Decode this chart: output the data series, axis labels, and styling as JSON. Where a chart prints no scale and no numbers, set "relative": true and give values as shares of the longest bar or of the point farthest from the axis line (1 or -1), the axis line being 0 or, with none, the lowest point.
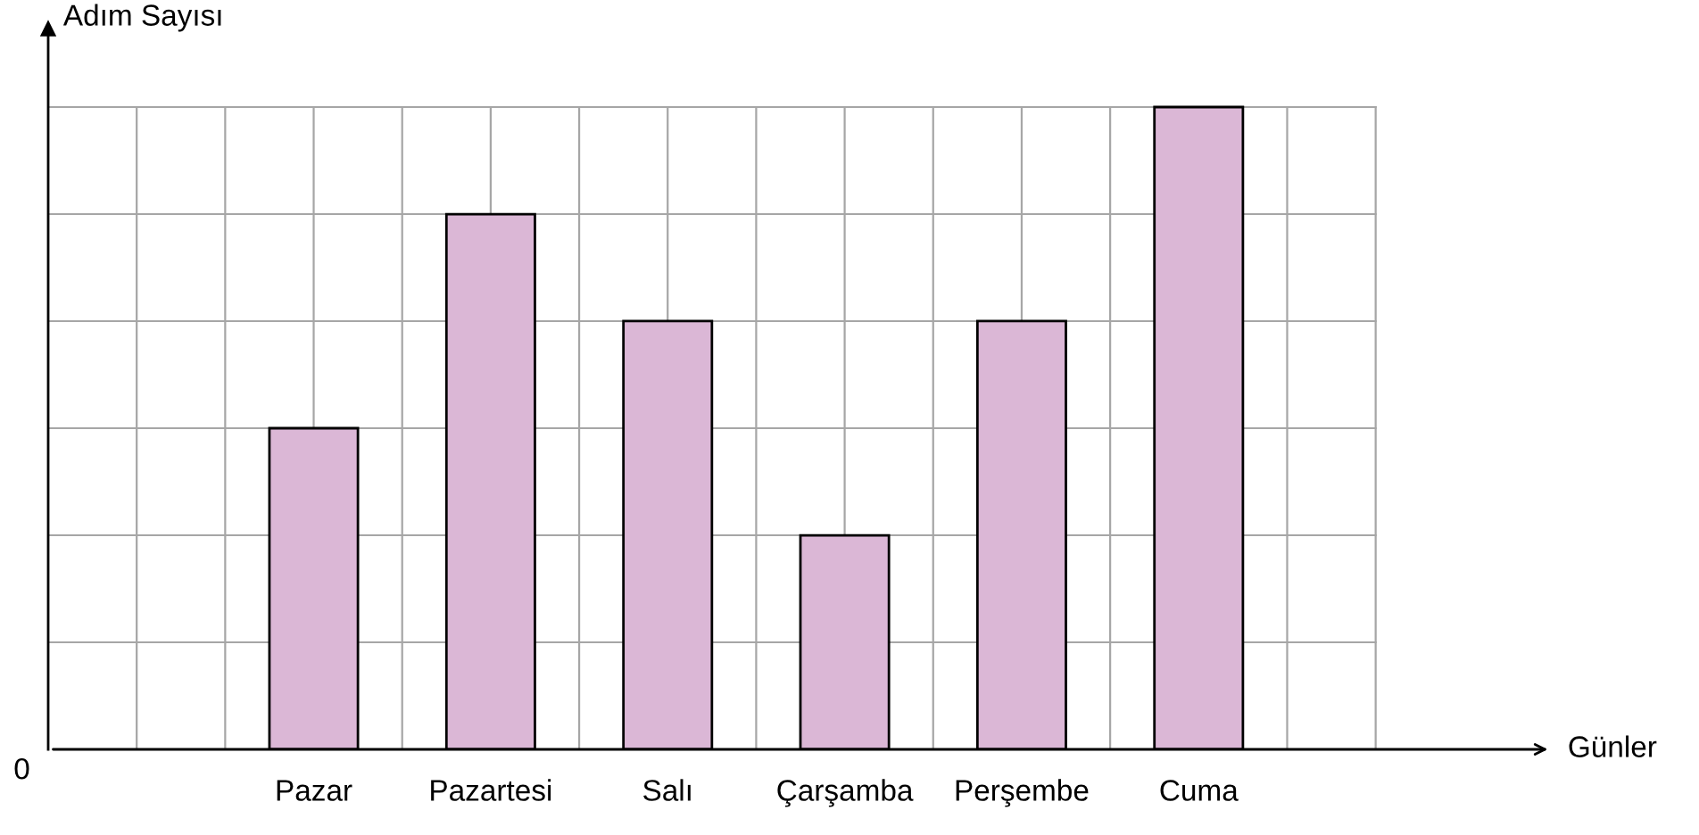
{
  "chart_data": {
    "type": "bar",
    "relative": true,
    "ylabel": "Adım Sayısı",
    "categories": [
      "Pazar",
      "Pazartesi",
      "Salı",
      "Çarşamba",
      "Perşembe",
      "Cuma"
    ],
    "values": [
      0.5,
      0.8333,
      0.6667,
      0.3333,
      0.6667,
      1
    ],
    "color": "#dbb7d6",
    "grid": true,
    "annotations": [
      "0",
      "Günler"
    ]
  }
}
